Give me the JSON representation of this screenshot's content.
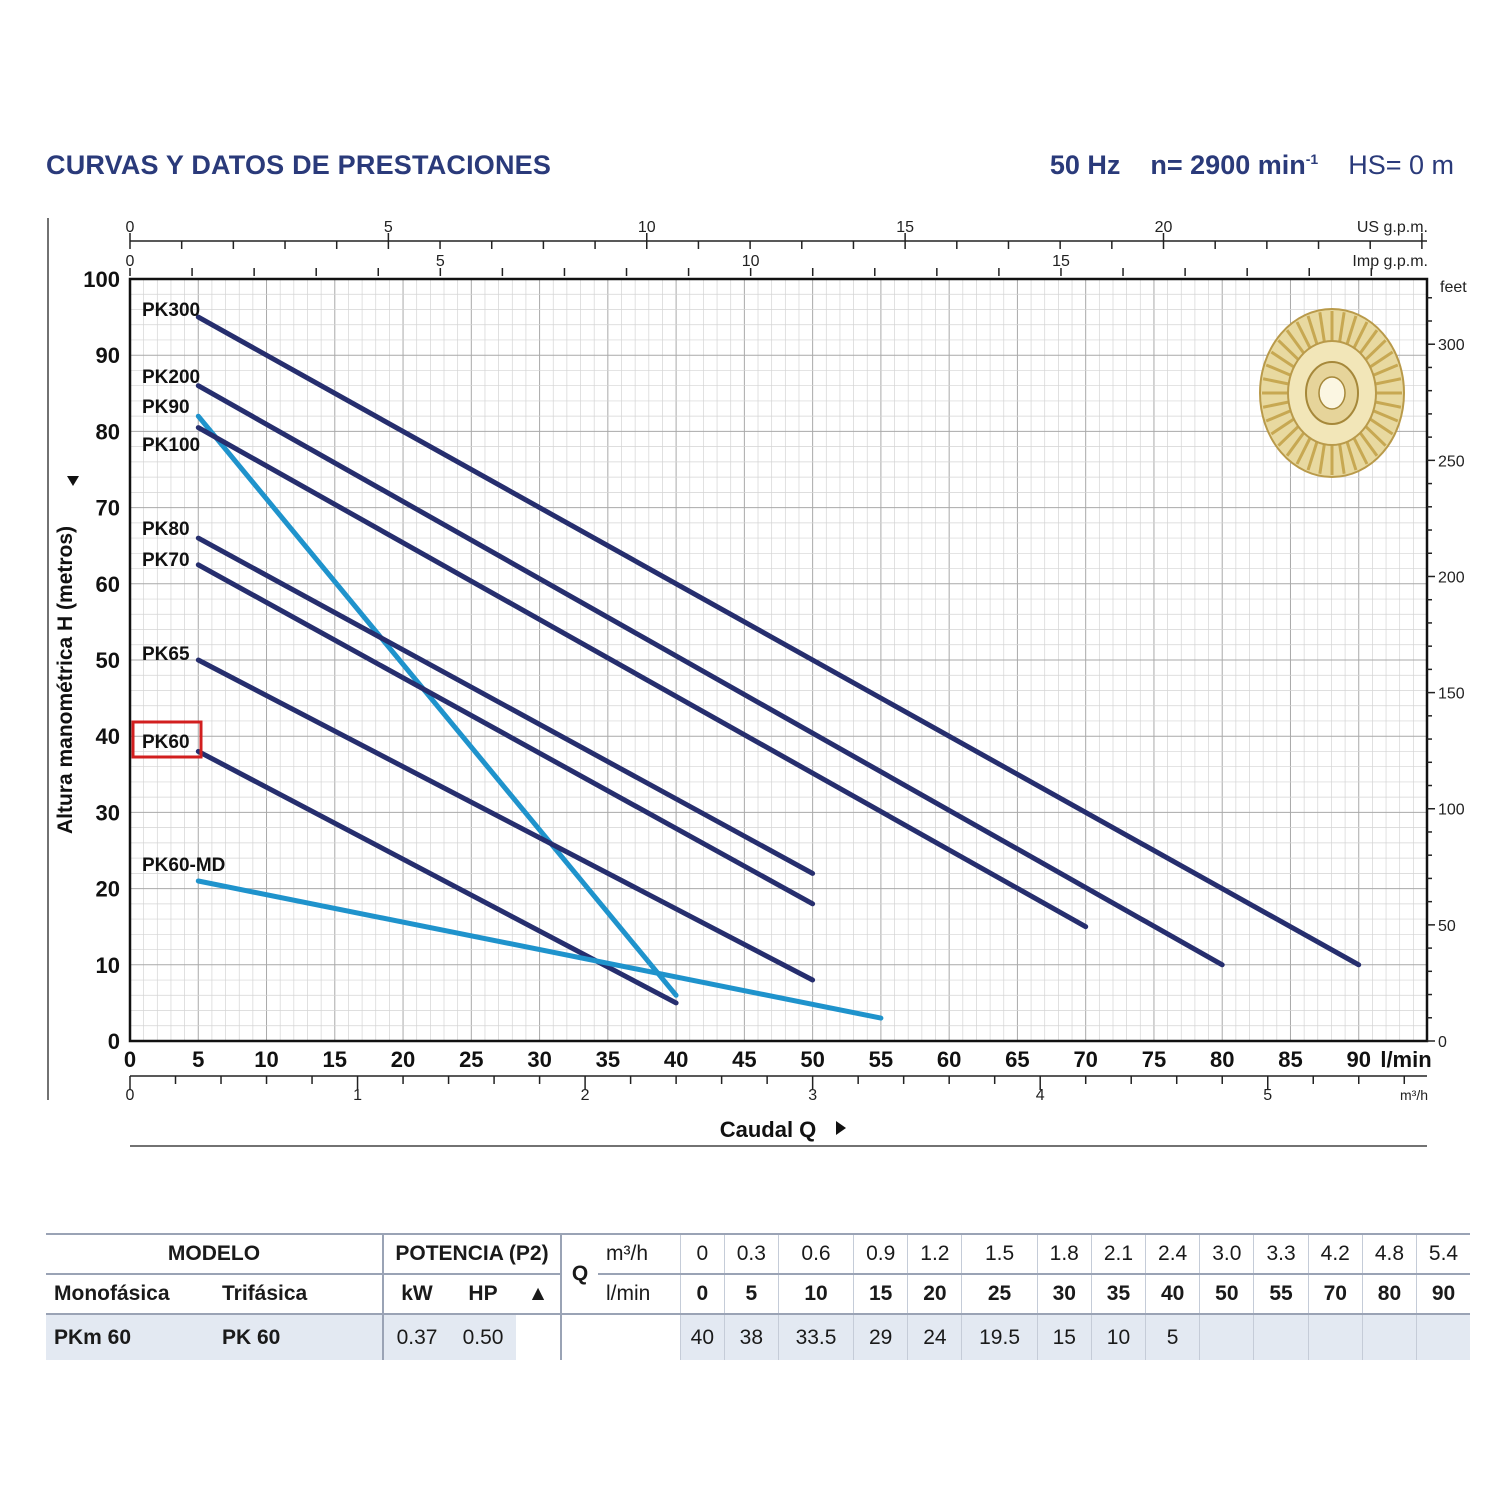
{
  "header": {
    "title": "CURVAS Y DATOS DE PRESTACIONES",
    "freq": "50 Hz",
    "speed": "n= 2900 min",
    "speed_sup": "-1",
    "hs": "HS= 0 m"
  },
  "chart_data": {
    "type": "line",
    "title": "CURVAS Y DATOS DE PRESTACIONES",
    "xlabel": "Caudal Q",
    "ylabel": "Altura manométrica H (metros)",
    "x_unit": "l/min",
    "xlim": [
      0,
      95
    ],
    "ylim": [
      0,
      100
    ],
    "x_ticks": [
      0,
      5,
      10,
      15,
      20,
      25,
      30,
      35,
      40,
      45,
      50,
      55,
      60,
      65,
      70,
      75,
      80,
      85,
      90
    ],
    "y_ticks": [
      0,
      10,
      20,
      30,
      40,
      50,
      60,
      70,
      80,
      90,
      100
    ],
    "secondary_axes": {
      "us_gpm": {
        "label": "US g.p.m.",
        "ticks": [
          0,
          5,
          10,
          15,
          20
        ]
      },
      "imp_gpm": {
        "label": "Imp g.p.m.",
        "ticks": [
          0,
          5,
          10,
          15
        ]
      },
      "m3h": {
        "label": "m³/h",
        "ticks": [
          0,
          1,
          2,
          3,
          4,
          5
        ]
      },
      "feet": {
        "label": "feet",
        "ticks": [
          0,
          50,
          100,
          150,
          200,
          250,
          300
        ]
      }
    },
    "grid": true,
    "highlighted_series": "PK60",
    "series": [
      {
        "name": "PK300",
        "x": [
          5,
          90
        ],
        "y": [
          95,
          10
        ],
        "color": "#262e6e"
      },
      {
        "name": "PK200",
        "x": [
          5,
          80
        ],
        "y": [
          86,
          10
        ],
        "color": "#262e6e"
      },
      {
        "name": "PK90",
        "x": [
          5,
          40
        ],
        "y": [
          82,
          6
        ],
        "color": "#1f93cc"
      },
      {
        "name": "PK100",
        "x": [
          5,
          70
        ],
        "y": [
          80.5,
          15
        ],
        "color": "#262e6e"
      },
      {
        "name": "PK80",
        "x": [
          5,
          50
        ],
        "y": [
          66,
          22
        ],
        "color": "#262e6e"
      },
      {
        "name": "PK70",
        "x": [
          5,
          50
        ],
        "y": [
          62.5,
          18
        ],
        "color": "#262e6e"
      },
      {
        "name": "PK65",
        "x": [
          5,
          50
        ],
        "y": [
          50,
          8
        ],
        "color": "#262e6e"
      },
      {
        "name": "PK60",
        "x": [
          5,
          40
        ],
        "y": [
          38,
          5
        ],
        "color": "#262e6e"
      },
      {
        "name": "PK60-MD",
        "x": [
          5,
          55
        ],
        "y": [
          21,
          3
        ],
        "color": "#1f93cc"
      }
    ]
  },
  "table": {
    "modelo": "MODELO",
    "potencia": "POTENCIA (P2)",
    "monofasica": "Monofásica",
    "trifasica": "Trifásica",
    "kw": "kW",
    "hp": "HP",
    "triangle": "▲",
    "q": "Q",
    "m3h_label": "m³/h",
    "lmin_label": "l/min",
    "m3h": [
      "0",
      "0.3",
      "0.6",
      "0.9",
      "1.2",
      "1.5",
      "1.8",
      "2.1",
      "2.4",
      "3.0",
      "3.3",
      "4.2",
      "4.8",
      "5.4"
    ],
    "lmin": [
      "0",
      "5",
      "10",
      "15",
      "20",
      "25",
      "30",
      "35",
      "40",
      "50",
      "55",
      "70",
      "80",
      "90"
    ],
    "row": {
      "mono": "PKm 60",
      "tri": "PK 60",
      "kw": "0.37",
      "hp": "0.50",
      "h": [
        "40",
        "38",
        "33.5",
        "29",
        "24",
        "19.5",
        "15",
        "10",
        "5",
        "",
        "",
        "",
        "",
        ""
      ]
    }
  }
}
